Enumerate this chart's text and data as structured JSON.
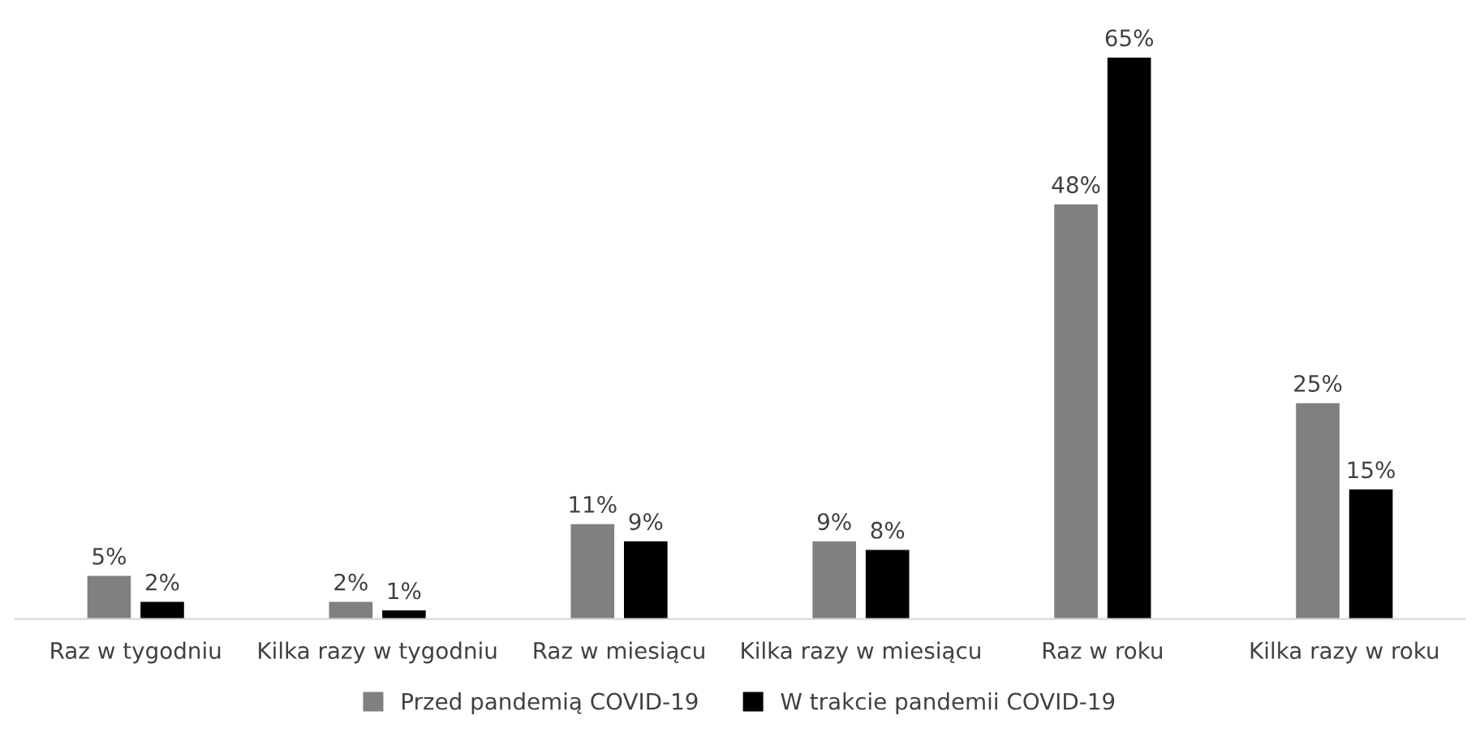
{
  "chart_data": {
    "type": "bar",
    "categories": [
      "Raz w tygodniu",
      "Kilka razy w tygodniu",
      "Raz w miesiącu",
      "Kilka razy w miesiącu",
      "Raz w roku",
      "Kilka razy w roku"
    ],
    "series": [
      {
        "name": "Przed pandemią COVID-19",
        "color": "#808080",
        "values": [
          5,
          2,
          11,
          9,
          48,
          25
        ],
        "value_labels": [
          "5%",
          "2%",
          "11%",
          "9%",
          "48%",
          "25%"
        ]
      },
      {
        "name": "W trakcie pandemii COVID-19",
        "color": "#000000",
        "values": [
          2,
          1,
          9,
          8,
          65,
          15
        ],
        "value_labels": [
          "2%",
          "1%",
          "9%",
          "8%",
          "65%",
          "15%"
        ]
      }
    ],
    "legend": "bottom",
    "grid": false
  }
}
